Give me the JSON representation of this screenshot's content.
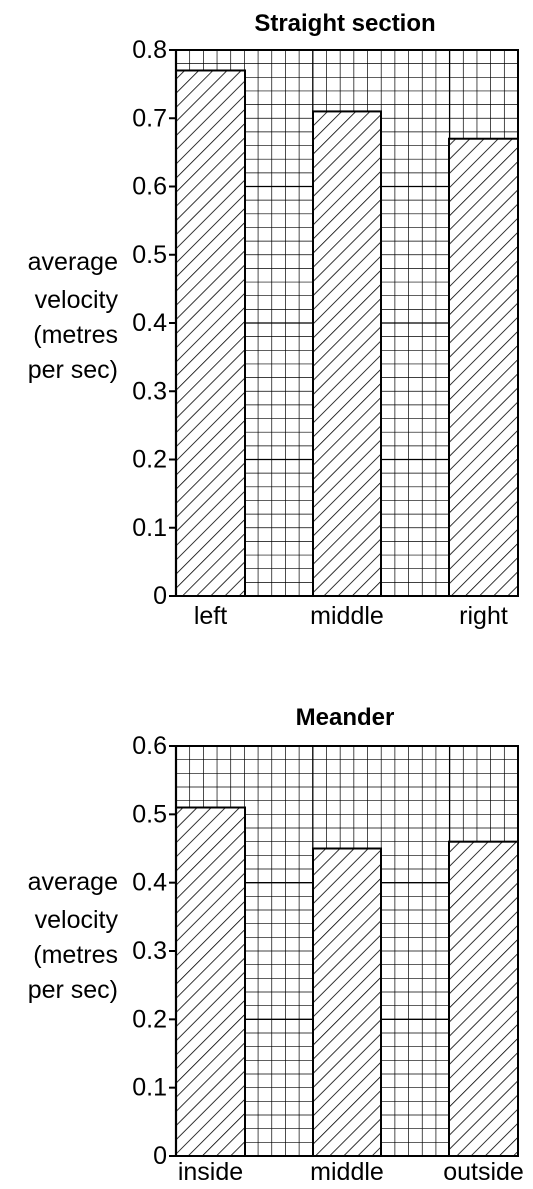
{
  "chart_data": [
    {
      "type": "bar",
      "title": "Straight section",
      "ylabel_lines": [
        "average",
        "velocity",
        "(metres",
        "per sec)"
      ],
      "ylim": [
        0,
        0.8
      ],
      "yticks": [
        0,
        0.1,
        0.2,
        0.3,
        0.4,
        0.5,
        0.6,
        0.7,
        0.8
      ],
      "ytick_labels": [
        "0",
        "0.1",
        "0.2",
        "0.3",
        "0.4",
        "0.5",
        "0.6",
        "0.7",
        "0.8"
      ],
      "categories": [
        "left",
        "middle",
        "right"
      ],
      "values": [
        0.77,
        0.71,
        0.67
      ],
      "grid": true,
      "bar_fill": "diagonal hatch"
    },
    {
      "type": "bar",
      "title": "Meander",
      "ylabel_lines": [
        "average",
        "velocity",
        "(metres",
        "per sec)"
      ],
      "ylim": [
        0,
        0.6
      ],
      "yticks": [
        0,
        0.1,
        0.2,
        0.3,
        0.4,
        0.5,
        0.6
      ],
      "ytick_labels": [
        "0",
        "0.1",
        "0.2",
        "0.3",
        "0.4",
        "0.5",
        "0.6"
      ],
      "categories": [
        "inside",
        "middle",
        "outside"
      ],
      "values": [
        0.51,
        0.45,
        0.46
      ],
      "grid": true,
      "bar_fill": "diagonal hatch"
    }
  ]
}
